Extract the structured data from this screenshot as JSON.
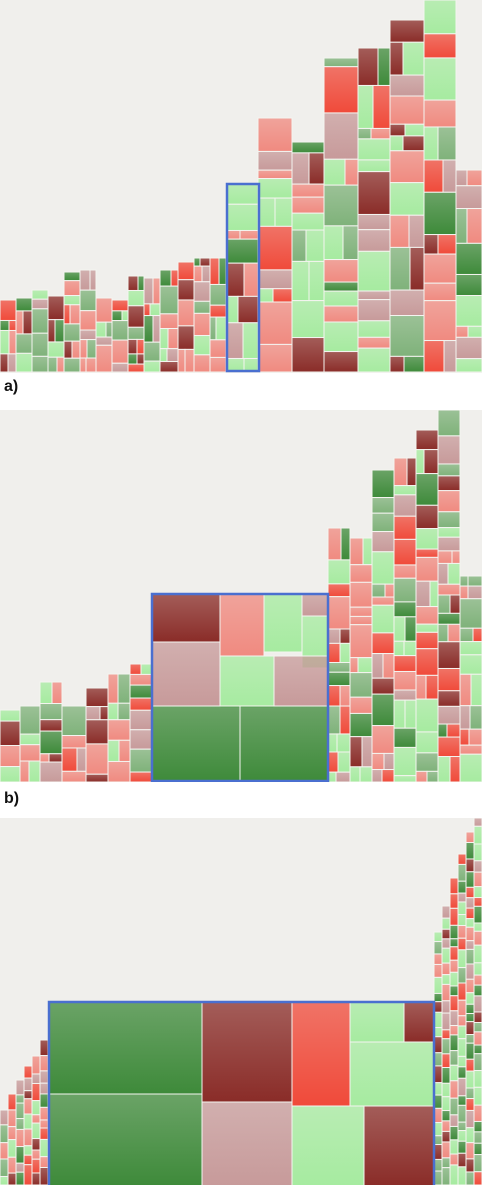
{
  "panels": [
    {
      "label": "a)"
    },
    {
      "label": "b)"
    },
    {
      "label": ""
    }
  ],
  "colors": {
    "green_light": "#a6eba0",
    "green_dark": "#3e8a3a",
    "green_mid": "#7fb27a",
    "red_bright": "#f04a3a",
    "red_salmon": "#f08a80",
    "red_dark": "#8a2c28",
    "rose": "#c79a9a",
    "highlight": "#4a6fd0",
    "background": "#f0efec"
  }
}
